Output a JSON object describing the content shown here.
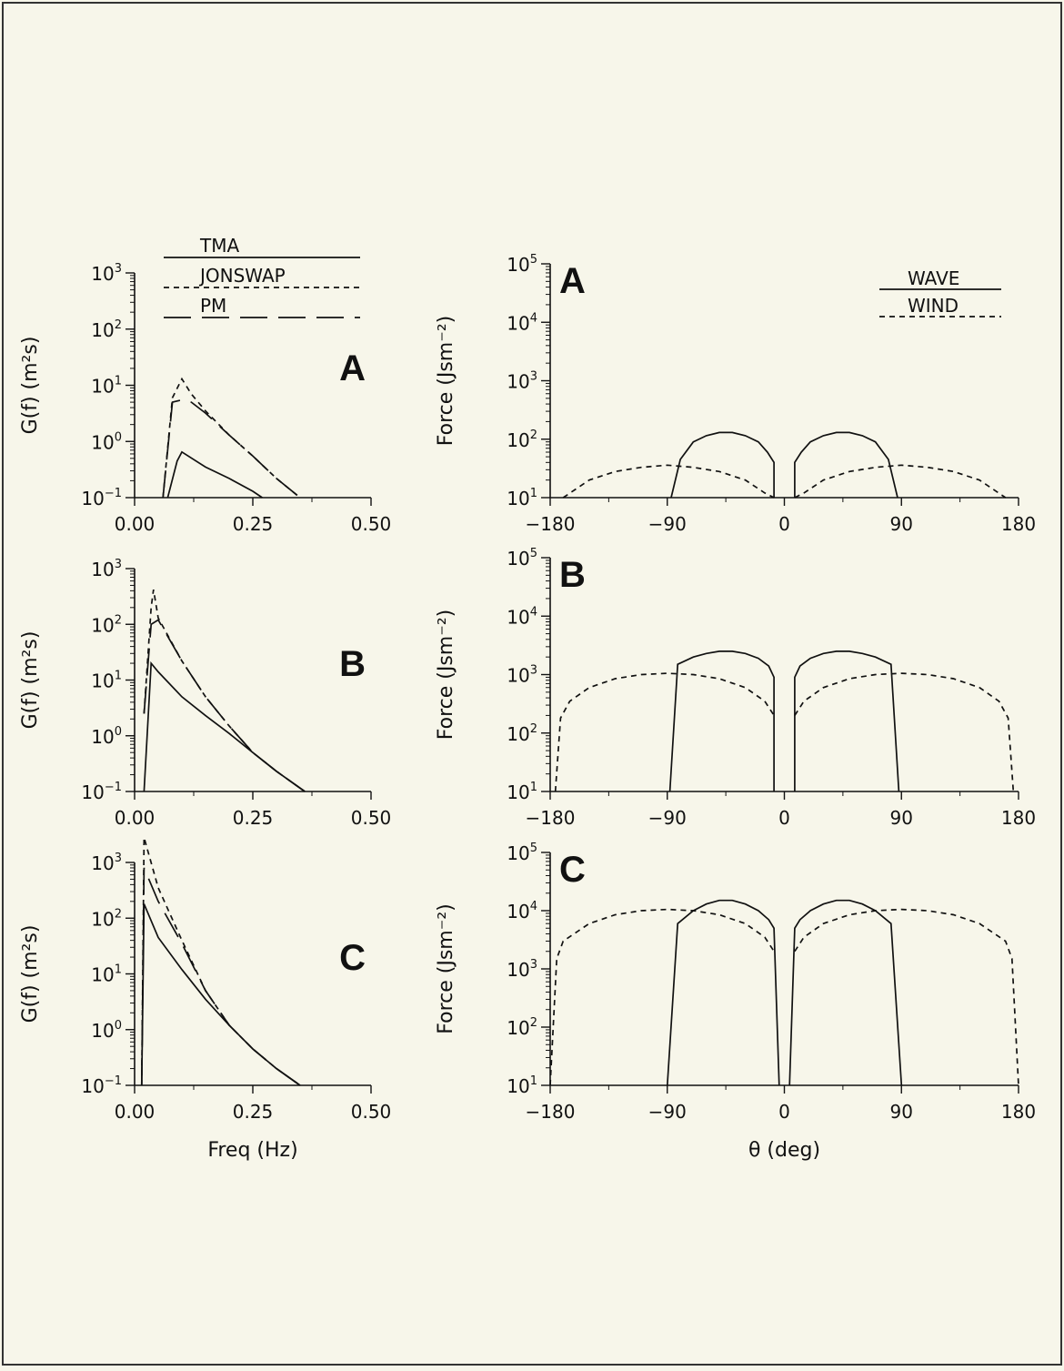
{
  "chart_data": [
    {
      "type": "line",
      "panel": "A",
      "side": "left",
      "letter": "A",
      "xlabel": "",
      "ylabel": "G(f)  (m²s)",
      "xlim": [
        0,
        0.5
      ],
      "ylim": [
        0.1,
        1000
      ],
      "yscale": "log",
      "xticks": [
        "0.00",
        "0.25",
        "0.50"
      ],
      "series": [
        {
          "name": "TMA",
          "style": "solid",
          "x": [
            0.07,
            0.09,
            0.1,
            0.15,
            0.2,
            0.25,
            0.27
          ],
          "y": [
            0.1,
            0.45,
            0.65,
            0.35,
            0.22,
            0.13,
            0.1
          ]
        },
        {
          "name": "JONSWAP",
          "style": "dashed",
          "x": [
            0.06,
            0.08,
            0.1,
            0.12,
            0.15,
            0.2,
            0.25,
            0.3,
            0.35
          ],
          "y": [
            0.1,
            6.0,
            13,
            7.0,
            3.5,
            1.3,
            0.55,
            0.22,
            0.1
          ]
        },
        {
          "name": "PM",
          "style": "longdash",
          "x": [
            0.06,
            0.08,
            0.1,
            0.12,
            0.15,
            0.2,
            0.25,
            0.3,
            0.35
          ],
          "y": [
            0.1,
            5.0,
            5.5,
            5.0,
            3.2,
            1.3,
            0.55,
            0.22,
            0.1
          ]
        }
      ]
    },
    {
      "type": "line",
      "panel": "B",
      "side": "left",
      "letter": "B",
      "xlabel": "",
      "ylabel": "G(f)  (m²s)",
      "xlim": [
        0,
        0.5
      ],
      "ylim": [
        0.1,
        1000
      ],
      "yscale": "log",
      "xticks": [
        "0.00",
        "0.25",
        "0.50"
      ],
      "series": [
        {
          "name": "TMA",
          "style": "solid",
          "x": [
            0.02,
            0.035,
            0.05,
            0.1,
            0.15,
            0.2,
            0.25,
            0.3,
            0.36
          ],
          "y": [
            0.1,
            20,
            14,
            5.0,
            2.3,
            1.1,
            0.5,
            0.23,
            0.1
          ]
        },
        {
          "name": "JONSWAP",
          "style": "dashed",
          "x": [
            0.02,
            0.035,
            0.04,
            0.05,
            0.1,
            0.15,
            0.2,
            0.25,
            0.3,
            0.36
          ],
          "y": [
            2.5,
            200,
            420,
            130,
            22,
            5.0,
            1.5,
            0.5,
            0.23,
            0.1
          ]
        },
        {
          "name": "PM",
          "style": "longdash",
          "x": [
            0.02,
            0.035,
            0.05,
            0.1,
            0.15,
            0.2,
            0.25,
            0.3,
            0.36
          ],
          "y": [
            2.5,
            100,
            120,
            22,
            5.0,
            1.5,
            0.5,
            0.23,
            0.1
          ]
        }
      ]
    },
    {
      "type": "line",
      "panel": "C",
      "side": "left",
      "letter": "C",
      "xlabel": "Freq (Hz)",
      "ylabel": "G(f)  (m²s)",
      "xlim": [
        0,
        0.5
      ],
      "ylim": [
        0.1,
        1000
      ],
      "yscale": "log",
      "xticks": [
        "0.00",
        "0.25",
        "0.50"
      ],
      "series": [
        {
          "name": "TMA",
          "style": "solid",
          "x": [
            0.015,
            0.02,
            0.05,
            0.1,
            0.15,
            0.2,
            0.25,
            0.3,
            0.35
          ],
          "y": [
            0.1,
            180,
            45,
            12,
            3.5,
            1.2,
            0.45,
            0.2,
            0.1
          ]
        },
        {
          "name": "JONSWAP",
          "style": "dashed",
          "x": [
            0.015,
            0.02,
            0.05,
            0.1,
            0.15,
            0.2,
            0.25,
            0.3,
            0.35
          ],
          "y": [
            0.1,
            2800,
            350,
            40,
            5.0,
            1.2,
            0.45,
            0.2,
            0.1
          ]
        },
        {
          "name": "PM",
          "style": "longdash",
          "x": [
            0.015,
            0.02,
            0.05,
            0.1,
            0.15,
            0.2,
            0.25,
            0.3,
            0.35
          ],
          "y": [
            0.1,
            800,
            200,
            35,
            5.0,
            1.2,
            0.45,
            0.2,
            0.1
          ]
        }
      ]
    },
    {
      "type": "line",
      "panel": "A",
      "side": "right",
      "letter": "A",
      "xlabel": "",
      "ylabel": "Force  (Jsm⁻²)",
      "xlim": [
        -180,
        180
      ],
      "ylim": [
        10,
        100000
      ],
      "yscale": "log",
      "xticks": [
        "-180",
        "-90",
        "0",
        "90",
        "180"
      ],
      "series": [
        {
          "name": "WAVE",
          "style": "solid",
          "segments": [
            {
              "x": [
                -87,
                -80,
                -70,
                -60,
                -50,
                -40,
                -30,
                -20,
                -13,
                -8,
                -8
              ],
              "y": [
                10,
                45,
                90,
                115,
                130,
                130,
                115,
                90,
                60,
                40,
                10
              ]
            },
            {
              "x": [
                8,
                8,
                13,
                20,
                30,
                40,
                50,
                60,
                70,
                80,
                87
              ],
              "y": [
                10,
                40,
                60,
                90,
                115,
                130,
                130,
                115,
                90,
                45,
                10
              ]
            }
          ]
        },
        {
          "name": "WIND",
          "style": "dashed",
          "segments": [
            {
              "x": [
                -170,
                -150,
                -130,
                -110,
                -90,
                -70,
                -50,
                -30,
                -15,
                -8
              ],
              "y": [
                10,
                20,
                28,
                33,
                36,
                33,
                28,
                20,
                12,
                10
              ]
            },
            {
              "x": [
                8,
                15,
                30,
                50,
                70,
                90,
                110,
                130,
                150,
                170
              ],
              "y": [
                10,
                12,
                20,
                28,
                33,
                36,
                33,
                28,
                20,
                10
              ]
            }
          ]
        }
      ]
    },
    {
      "type": "line",
      "panel": "B",
      "side": "right",
      "letter": "B",
      "xlabel": "",
      "ylabel": "Force  (Jsm⁻²)",
      "xlim": [
        -180,
        180
      ],
      "ylim": [
        10,
        100000
      ],
      "yscale": "log",
      "xticks": [
        "-180",
        "-90",
        "0",
        "90",
        "180"
      ],
      "series": [
        {
          "name": "WAVE",
          "style": "solid",
          "segments": [
            {
              "x": [
                -88,
                -82,
                -70,
                -60,
                -50,
                -40,
                -30,
                -20,
                -12,
                -8,
                -8
              ],
              "y": [
                10,
                1500,
                2000,
                2300,
                2500,
                2500,
                2300,
                1900,
                1400,
                900,
                10
              ]
            },
            {
              "x": [
                8,
                8,
                12,
                20,
                30,
                40,
                50,
                60,
                70,
                82,
                88
              ],
              "y": [
                10,
                900,
                1400,
                1900,
                2300,
                2500,
                2500,
                2300,
                2000,
                1500,
                10
              ]
            }
          ]
        },
        {
          "name": "WIND",
          "style": "dashed",
          "segments": [
            {
              "x": [
                -176,
                -172,
                -165,
                -150,
                -130,
                -110,
                -90,
                -70,
                -50,
                -30,
                -15,
                -8
              ],
              "y": [
                10,
                180,
                350,
                600,
                850,
                1000,
                1050,
                1000,
                850,
                600,
                350,
                200
              ]
            },
            {
              "x": [
                8,
                15,
                30,
                50,
                70,
                90,
                110,
                130,
                150,
                165,
                172,
                176
              ],
              "y": [
                200,
                350,
                600,
                850,
                1000,
                1050,
                1000,
                850,
                600,
                350,
                180,
                10
              ]
            }
          ]
        }
      ]
    },
    {
      "type": "line",
      "panel": "C",
      "side": "right",
      "letter": "C",
      "xlabel": "θ (deg)",
      "ylabel": "Force  (Jsm⁻²)",
      "xlim": [
        -180,
        180
      ],
      "ylim": [
        10,
        100000
      ],
      "yscale": "log",
      "xticks": [
        "-180",
        "-90",
        "0",
        "90",
        "180"
      ],
      "series": [
        {
          "name": "WAVE",
          "style": "solid",
          "segments": [
            {
              "x": [
                -90,
                -82,
                -70,
                -60,
                -50,
                -40,
                -30,
                -20,
                -12,
                -8,
                -4
              ],
              "y": [
                10,
                6000,
                10000,
                13000,
                15000,
                15000,
                13000,
                10000,
                7000,
                5000,
                10
              ]
            },
            {
              "x": [
                4,
                8,
                12,
                20,
                30,
                40,
                50,
                60,
                70,
                82,
                90
              ],
              "y": [
                10,
                5000,
                7000,
                10000,
                13000,
                15000,
                15000,
                13000,
                10000,
                6000,
                10
              ]
            }
          ]
        },
        {
          "name": "WIND",
          "style": "dashed",
          "segments": [
            {
              "x": [
                -180,
                -175,
                -170,
                -150,
                -130,
                -110,
                -90,
                -70,
                -50,
                -30,
                -15,
                -8
              ],
              "y": [
                10,
                1500,
                3000,
                6000,
                8500,
                10000,
                10500,
                10000,
                8500,
                6000,
                3500,
                2000
              ]
            },
            {
              "x": [
                8,
                15,
                30,
                50,
                70,
                90,
                110,
                130,
                150,
                170,
                175,
                180
              ],
              "y": [
                2000,
                3500,
                6000,
                8500,
                10000,
                10500,
                10000,
                8500,
                6000,
                3000,
                1500,
                10
              ]
            }
          ]
        }
      ]
    }
  ],
  "legend_left": [
    {
      "name": "TMA",
      "style": "solid"
    },
    {
      "name": "JONSWAP",
      "style": "dashed"
    },
    {
      "name": "PM",
      "style": "longdash"
    }
  ],
  "legend_right": [
    {
      "name": "WAVE",
      "style": "solid"
    },
    {
      "name": "WIND",
      "style": "dashed"
    }
  ]
}
